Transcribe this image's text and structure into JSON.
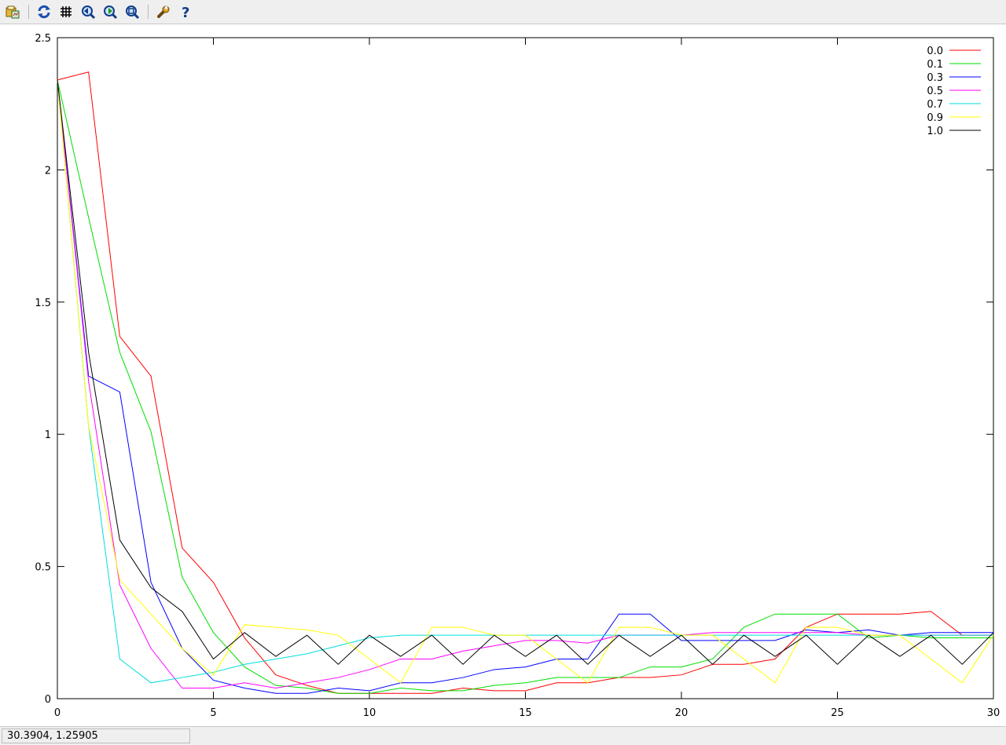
{
  "toolbar": {
    "buttons": [
      {
        "name": "export-icon",
        "interactable": true
      },
      {
        "name": "replot-icon",
        "interactable": true
      },
      {
        "name": "grid-icon",
        "interactable": true
      },
      {
        "name": "zoom-back-icon",
        "interactable": true
      },
      {
        "name": "zoom-forward-icon",
        "interactable": true
      },
      {
        "name": "unzoom-icon",
        "interactable": true
      },
      {
        "name": "settings-icon",
        "interactable": true
      },
      {
        "name": "help-icon",
        "interactable": true
      }
    ]
  },
  "status": {
    "coords": "30.3904,  1.25905"
  },
  "chart_data": {
    "type": "line",
    "title": "",
    "xlabel": "",
    "ylabel": "",
    "xlim": [
      0,
      30
    ],
    "ylim": [
      0,
      2.5
    ],
    "xticks": [
      0,
      5,
      10,
      15,
      20,
      25,
      30
    ],
    "xtick_labels": [
      "0",
      "5",
      "10",
      "15",
      "20",
      "25",
      "30"
    ],
    "yticks": [
      0,
      0.5,
      1,
      1.5,
      2,
      2.5
    ],
    "ytick_labels": [
      "0",
      "0.5",
      "1",
      "1.5",
      "2",
      "2.5"
    ],
    "grid": false,
    "legend_position": "top-right",
    "x": [
      0,
      1,
      2,
      3,
      4,
      5,
      6,
      7,
      8,
      9,
      10,
      11,
      12,
      13,
      14,
      15,
      16,
      17,
      18,
      19,
      20,
      21,
      22,
      23,
      24,
      25,
      26,
      27,
      28,
      29,
      30
    ],
    "series": [
      {
        "name": "0.0",
        "color": "#ff0000",
        "values": [
          2.34,
          2.37,
          1.37,
          1.22,
          0.57,
          0.44,
          0.23,
          0.09,
          0.05,
          0.02,
          0.02,
          0.02,
          0.02,
          0.04,
          0.03,
          0.03,
          0.06,
          0.06,
          0.08,
          0.08,
          0.09,
          0.13,
          0.13,
          0.15,
          0.27,
          0.32,
          0.32,
          0.32,
          0.33,
          0.24,
          0.24
        ]
      },
      {
        "name": "0.1",
        "color": "#00dd00",
        "values": [
          2.34,
          1.82,
          1.31,
          1.01,
          0.46,
          0.25,
          0.12,
          0.05,
          0.04,
          0.02,
          0.02,
          0.04,
          0.03,
          0.03,
          0.05,
          0.06,
          0.08,
          0.08,
          0.08,
          0.12,
          0.12,
          0.15,
          0.27,
          0.32,
          0.32,
          0.32,
          0.23,
          0.24,
          0.23,
          0.23,
          0.23
        ]
      },
      {
        "name": "0.3",
        "color": "#0000ff",
        "values": [
          2.34,
          1.22,
          1.16,
          0.44,
          0.19,
          0.07,
          0.04,
          0.02,
          0.02,
          0.04,
          0.03,
          0.06,
          0.06,
          0.08,
          0.11,
          0.12,
          0.15,
          0.15,
          0.32,
          0.32,
          0.22,
          0.22,
          0.22,
          0.22,
          0.26,
          0.25,
          0.26,
          0.24,
          0.25,
          0.25,
          0.25
        ]
      },
      {
        "name": "0.5",
        "color": "#ff00ff",
        "values": [
          2.34,
          1.2,
          0.43,
          0.19,
          0.04,
          0.04,
          0.06,
          0.04,
          0.06,
          0.08,
          0.11,
          0.15,
          0.15,
          0.18,
          0.2,
          0.22,
          0.22,
          0.21,
          0.24,
          0.24,
          0.24,
          0.25,
          0.25,
          0.25,
          0.25,
          0.25,
          0.24,
          0.24,
          0.24,
          0.24,
          0.24
        ]
      },
      {
        "name": "0.7",
        "color": "#00dddd",
        "values": [
          2.34,
          1.03,
          0.15,
          0.06,
          0.08,
          0.1,
          0.13,
          0.15,
          0.17,
          0.2,
          0.23,
          0.24,
          0.24,
          0.24,
          0.24,
          0.24,
          0.24,
          0.24,
          0.24,
          0.24,
          0.24,
          0.24,
          0.24,
          0.24,
          0.24,
          0.24,
          0.24,
          0.24,
          0.24,
          0.24,
          0.24
        ]
      },
      {
        "name": "0.9",
        "color": "#ffff00",
        "values": [
          2.34,
          1.03,
          0.45,
          0.32,
          0.19,
          0.09,
          0.28,
          0.27,
          0.26,
          0.24,
          0.15,
          0.06,
          0.27,
          0.27,
          0.24,
          0.24,
          0.15,
          0.06,
          0.27,
          0.27,
          0.24,
          0.24,
          0.15,
          0.06,
          0.27,
          0.27,
          0.24,
          0.24,
          0.15,
          0.06,
          0.24
        ]
      },
      {
        "name": "1.0",
        "color": "#000000",
        "values": [
          2.34,
          1.31,
          0.6,
          0.42,
          0.33,
          0.15,
          0.25,
          0.16,
          0.24,
          0.13,
          0.24,
          0.16,
          0.24,
          0.13,
          0.24,
          0.16,
          0.24,
          0.13,
          0.24,
          0.16,
          0.24,
          0.13,
          0.24,
          0.16,
          0.24,
          0.13,
          0.24,
          0.16,
          0.24,
          0.13,
          0.25
        ]
      }
    ]
  }
}
